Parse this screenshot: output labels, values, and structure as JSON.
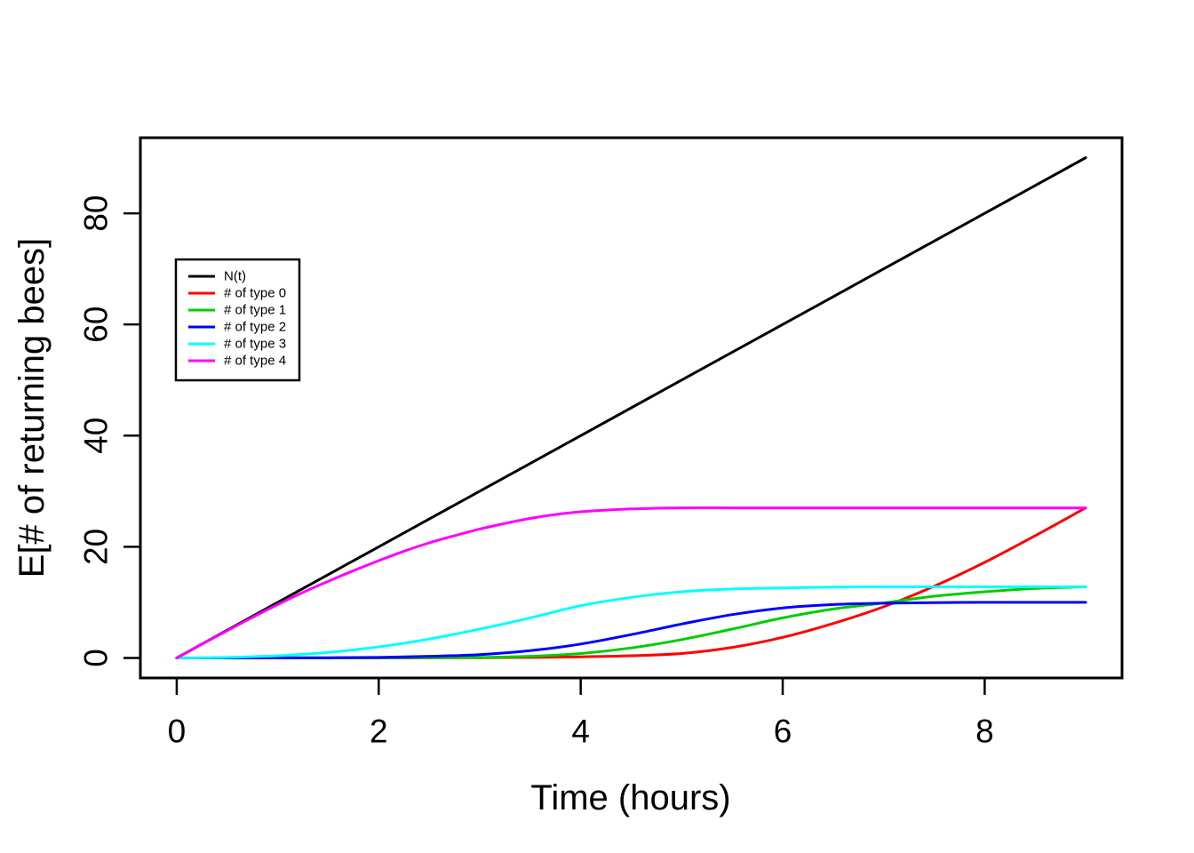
{
  "figure": {
    "background": "#FFFFFF",
    "box_color": "#000000"
  },
  "chart_data": {
    "type": "line",
    "title": "",
    "xlabel": "Time (hours)",
    "ylabel": "E[# of returning bees]",
    "xlim": [
      0,
      9
    ],
    "ylim": [
      0,
      90
    ],
    "x_ticks": [
      0,
      2,
      4,
      6,
      8
    ],
    "y_ticks": [
      0,
      20,
      40,
      60,
      80
    ],
    "axis_expansion": 0.04,
    "grid": false,
    "legend": {
      "position": "top-left-inside",
      "border": true
    },
    "series": [
      {
        "name": "N(t)",
        "color": "#000000",
        "points": [
          [
            0,
            0
          ],
          [
            1,
            10
          ],
          [
            2,
            20
          ],
          [
            3,
            30
          ],
          [
            4,
            40
          ],
          [
            5,
            50
          ],
          [
            6,
            60
          ],
          [
            7,
            70
          ],
          [
            8,
            80
          ],
          [
            9,
            90
          ]
        ]
      },
      {
        "name": "# of type 0",
        "color": "#FF0000",
        "points": [
          [
            0,
            0
          ],
          [
            0.5,
            0
          ],
          [
            1,
            0
          ],
          [
            1.5,
            0
          ],
          [
            2,
            0
          ],
          [
            2.5,
            0.02
          ],
          [
            3,
            0.05
          ],
          [
            3.5,
            0.1
          ],
          [
            4,
            0.2
          ],
          [
            4.5,
            0.4
          ],
          [
            5,
            0.8
          ],
          [
            5.5,
            1.9
          ],
          [
            6,
            3.7
          ],
          [
            6.5,
            6.2
          ],
          [
            7,
            9.2
          ],
          [
            7.5,
            12.9
          ],
          [
            8,
            17.2
          ],
          [
            8.5,
            22.0
          ],
          [
            9,
            27.0
          ]
        ]
      },
      {
        "name": "# of type 1",
        "color": "#00CD00",
        "points": [
          [
            0,
            0
          ],
          [
            0.5,
            0
          ],
          [
            1,
            0
          ],
          [
            1.5,
            0
          ],
          [
            2,
            0.02
          ],
          [
            2.5,
            0.05
          ],
          [
            3,
            0.1
          ],
          [
            3.5,
            0.3
          ],
          [
            4,
            0.8
          ],
          [
            4.5,
            1.8
          ],
          [
            5,
            3.3
          ],
          [
            5.5,
            5.2
          ],
          [
            6,
            7.2
          ],
          [
            6.5,
            8.8
          ],
          [
            7,
            9.9
          ],
          [
            7.5,
            11.1
          ],
          [
            8,
            11.9
          ],
          [
            8.5,
            12.5
          ],
          [
            9,
            12.8
          ]
        ]
      },
      {
        "name": "# of type 2",
        "color": "#0000FF",
        "points": [
          [
            0,
            0
          ],
          [
            0.5,
            0
          ],
          [
            1,
            0.02
          ],
          [
            1.5,
            0.05
          ],
          [
            2,
            0.1
          ],
          [
            2.5,
            0.3
          ],
          [
            3,
            0.6
          ],
          [
            3.5,
            1.3
          ],
          [
            4,
            2.5
          ],
          [
            4.5,
            4.2
          ],
          [
            5,
            6.1
          ],
          [
            5.5,
            7.8
          ],
          [
            6,
            9.0
          ],
          [
            6.5,
            9.6
          ],
          [
            7,
            9.85
          ],
          [
            7.5,
            9.95
          ],
          [
            8,
            10
          ],
          [
            8.5,
            10
          ],
          [
            9,
            10
          ]
        ]
      },
      {
        "name": "# of type 3",
        "color": "#00FFFF",
        "points": [
          [
            0,
            0
          ],
          [
            0.5,
            0.1
          ],
          [
            1,
            0.4
          ],
          [
            1.5,
            1.0
          ],
          [
            2,
            2.0
          ],
          [
            2.5,
            3.4
          ],
          [
            3,
            5.2
          ],
          [
            3.5,
            7.2
          ],
          [
            4,
            9.4
          ],
          [
            4.5,
            10.9
          ],
          [
            5,
            11.9
          ],
          [
            5.5,
            12.4
          ],
          [
            6,
            12.6
          ],
          [
            6.5,
            12.75
          ],
          [
            7,
            12.8
          ],
          [
            7.5,
            12.8
          ],
          [
            8,
            12.8
          ],
          [
            8.5,
            12.8
          ],
          [
            9,
            12.8
          ]
        ]
      },
      {
        "name": "# of type 4",
        "color": "#FF00FF",
        "points": [
          [
            0,
            0
          ],
          [
            0.25,
            2.5
          ],
          [
            0.5,
            4.9
          ],
          [
            0.75,
            7.3
          ],
          [
            1,
            9.6
          ],
          [
            1.25,
            11.8
          ],
          [
            1.5,
            13.8
          ],
          [
            1.75,
            15.7
          ],
          [
            2,
            17.5
          ],
          [
            2.25,
            19.2
          ],
          [
            2.5,
            20.7
          ],
          [
            2.75,
            22.0
          ],
          [
            3,
            23.2
          ],
          [
            3.25,
            24.2
          ],
          [
            3.5,
            25.1
          ],
          [
            3.75,
            25.8
          ],
          [
            4,
            26.3
          ],
          [
            4.25,
            26.6
          ],
          [
            4.5,
            26.8
          ],
          [
            5,
            27
          ],
          [
            5.5,
            27
          ],
          [
            6,
            27
          ],
          [
            7,
            27
          ],
          [
            8,
            27
          ],
          [
            9,
            27
          ]
        ]
      }
    ]
  }
}
